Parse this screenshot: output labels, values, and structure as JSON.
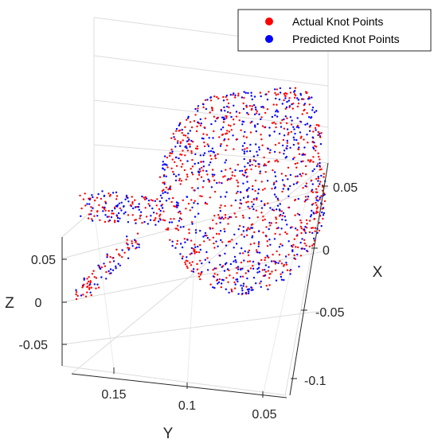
{
  "chart_data": {
    "type": "scatter",
    "title": "",
    "axes": {
      "x": {
        "label": "X",
        "ticks": [
          "0.05",
          "0",
          "-0.05",
          "-0.1"
        ]
      },
      "y": {
        "label": "Y",
        "ticks": [
          "0.15",
          "0.1",
          "0.05"
        ]
      },
      "z": {
        "label": "Z",
        "ticks": [
          "0.05",
          "0",
          "-0.05"
        ]
      }
    },
    "grid": true,
    "legend_position": "top-right",
    "series": [
      {
        "name": "Actual Knot Points",
        "color": "#ff0000"
      },
      {
        "name": "Predicted Knot Points",
        "color": "#0000ff"
      }
    ]
  }
}
